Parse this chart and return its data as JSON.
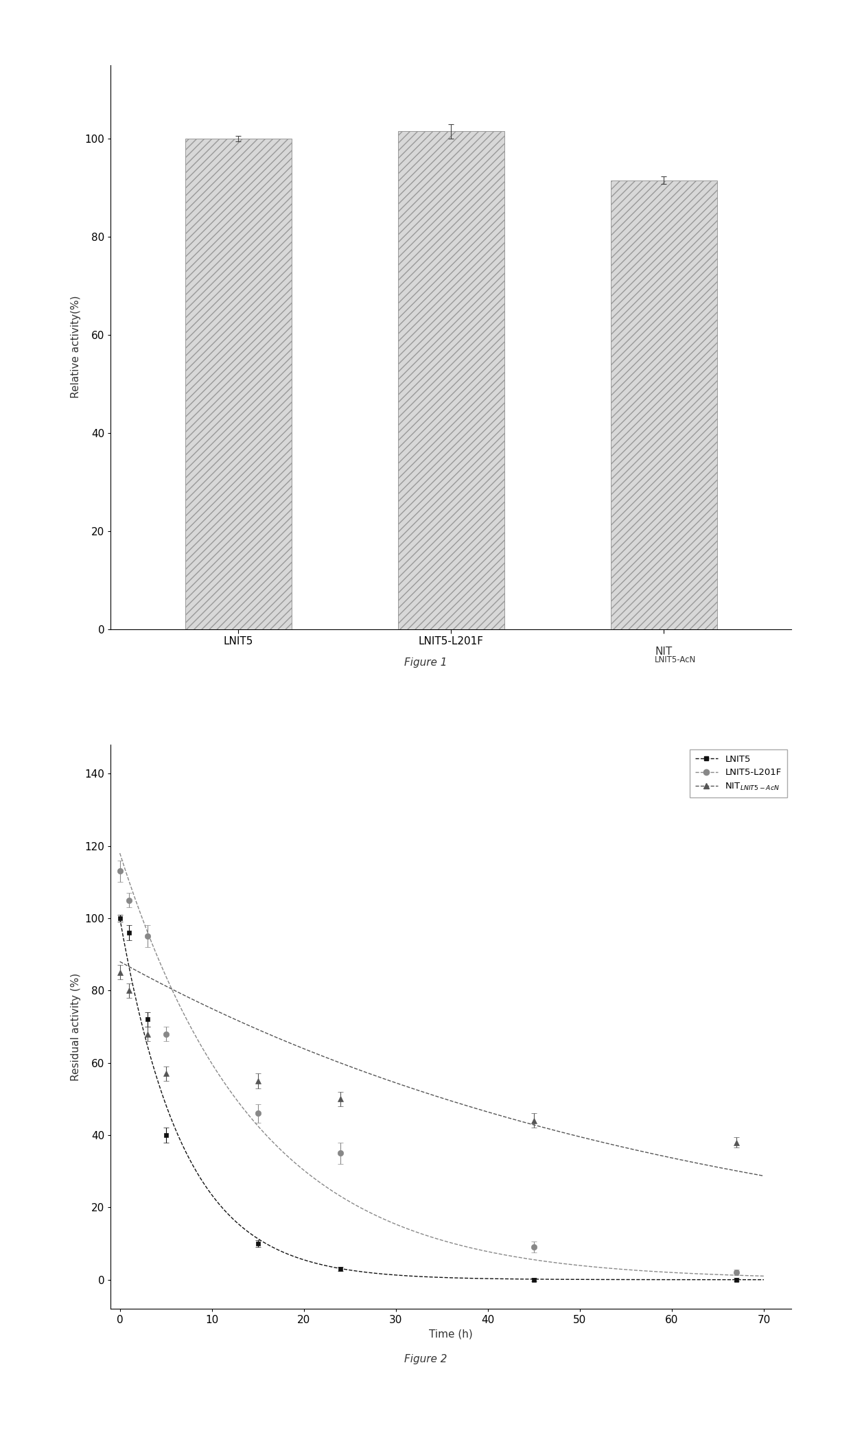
{
  "fig1": {
    "categories": [
      "LNIT5",
      "LNIT5-L201F",
      "NIT_LNIT5-AcN"
    ],
    "values": [
      100,
      101.5,
      91.5
    ],
    "errors": [
      0.5,
      1.5,
      0.8
    ],
    "ylabel": "Relative activity(%)",
    "ylim": [
      0,
      115
    ],
    "yticks": [
      0,
      20,
      40,
      60,
      80,
      100
    ],
    "figure_label": "Figure 1",
    "bar_color": "#d8d8d8",
    "bar_hatch": "///",
    "bar_edgecolor": "#999999",
    "bar_width": 0.5
  },
  "fig2": {
    "ylabel": "Residual activity (%)",
    "xlabel": "Time (h)",
    "ylim": [
      -8,
      148
    ],
    "xlim": [
      -1,
      73
    ],
    "yticks": [
      0,
      20,
      40,
      60,
      80,
      100,
      120,
      140
    ],
    "xticks": [
      0,
      10,
      20,
      30,
      40,
      50,
      60,
      70
    ],
    "figure_label": "Figure 2",
    "series": [
      {
        "label": "LNIT5",
        "x": [
          0,
          1,
          3,
          5,
          15,
          24,
          45,
          67
        ],
        "y": [
          100,
          96,
          72,
          40,
          10,
          3,
          0,
          0
        ],
        "errors": [
          1.0,
          2.0,
          2.0,
          2.0,
          1.0,
          0.5,
          0.5,
          0.5
        ],
        "fit_params": [
          100,
          0.145
        ]
      },
      {
        "label": "LNIT5-L201F",
        "x": [
          0,
          1,
          3,
          5,
          15,
          24,
          45,
          67
        ],
        "y": [
          113,
          105,
          95,
          68,
          46,
          35,
          9,
          2
        ],
        "errors": [
          3.0,
          2.0,
          3.0,
          2.0,
          2.5,
          3.0,
          1.5,
          0.8
        ],
        "fit_params": [
          118,
          0.068
        ]
      },
      {
        "label_main": "NIT",
        "label_sub": "LNIT5-AcN",
        "x": [
          0,
          1,
          3,
          5,
          15,
          24,
          45,
          67
        ],
        "y": [
          85,
          80,
          68,
          57,
          55,
          50,
          44,
          38
        ],
        "errors": [
          2.0,
          2.0,
          2.0,
          2.0,
          2.0,
          2.0,
          2.0,
          1.5
        ],
        "fit_params": [
          88,
          0.016
        ]
      }
    ]
  },
  "background_color": "#ffffff",
  "font_color": "#333333",
  "font_size": 11
}
